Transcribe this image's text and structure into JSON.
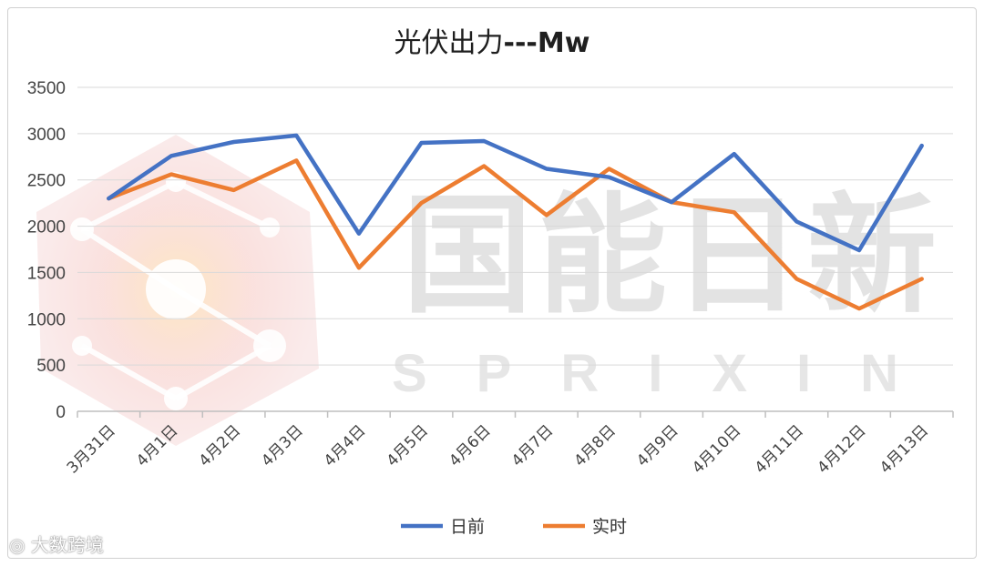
{
  "chart_data": {
    "type": "line",
    "title_main": "光伏出力",
    "title_suffix": "---Mw",
    "ylim": [
      0,
      3500
    ],
    "yticks": [
      "0",
      "500",
      "1000",
      "1500",
      "2000",
      "2500",
      "3000",
      "3500"
    ],
    "categories": [
      "3月31日",
      "4月1日",
      "4月2日",
      "4月3日",
      "4月4日",
      "4月5日",
      "4月6日",
      "4月7日",
      "4月8日",
      "4月9日",
      "4月10日",
      "4月11日",
      "4月12日",
      "4月13日"
    ],
    "series": [
      {
        "name": "日前",
        "color": "#4472C4",
        "values": [
          2300,
          2760,
          2910,
          2980,
          1920,
          2900,
          2920,
          2620,
          2530,
          2260,
          2780,
          2050,
          1740,
          2870
        ]
      },
      {
        "name": "实时",
        "color": "#ED7D31",
        "values": [
          2300,
          2560,
          2390,
          2710,
          1550,
          2250,
          2650,
          2120,
          2620,
          2260,
          2150,
          1430,
          1110,
          1430
        ]
      }
    ],
    "grid": true,
    "legend_position": "bottom"
  },
  "watermark": {
    "chinese": "国能日新",
    "latin": "SPRIXIN"
  },
  "corner_badge": "大数跨境"
}
